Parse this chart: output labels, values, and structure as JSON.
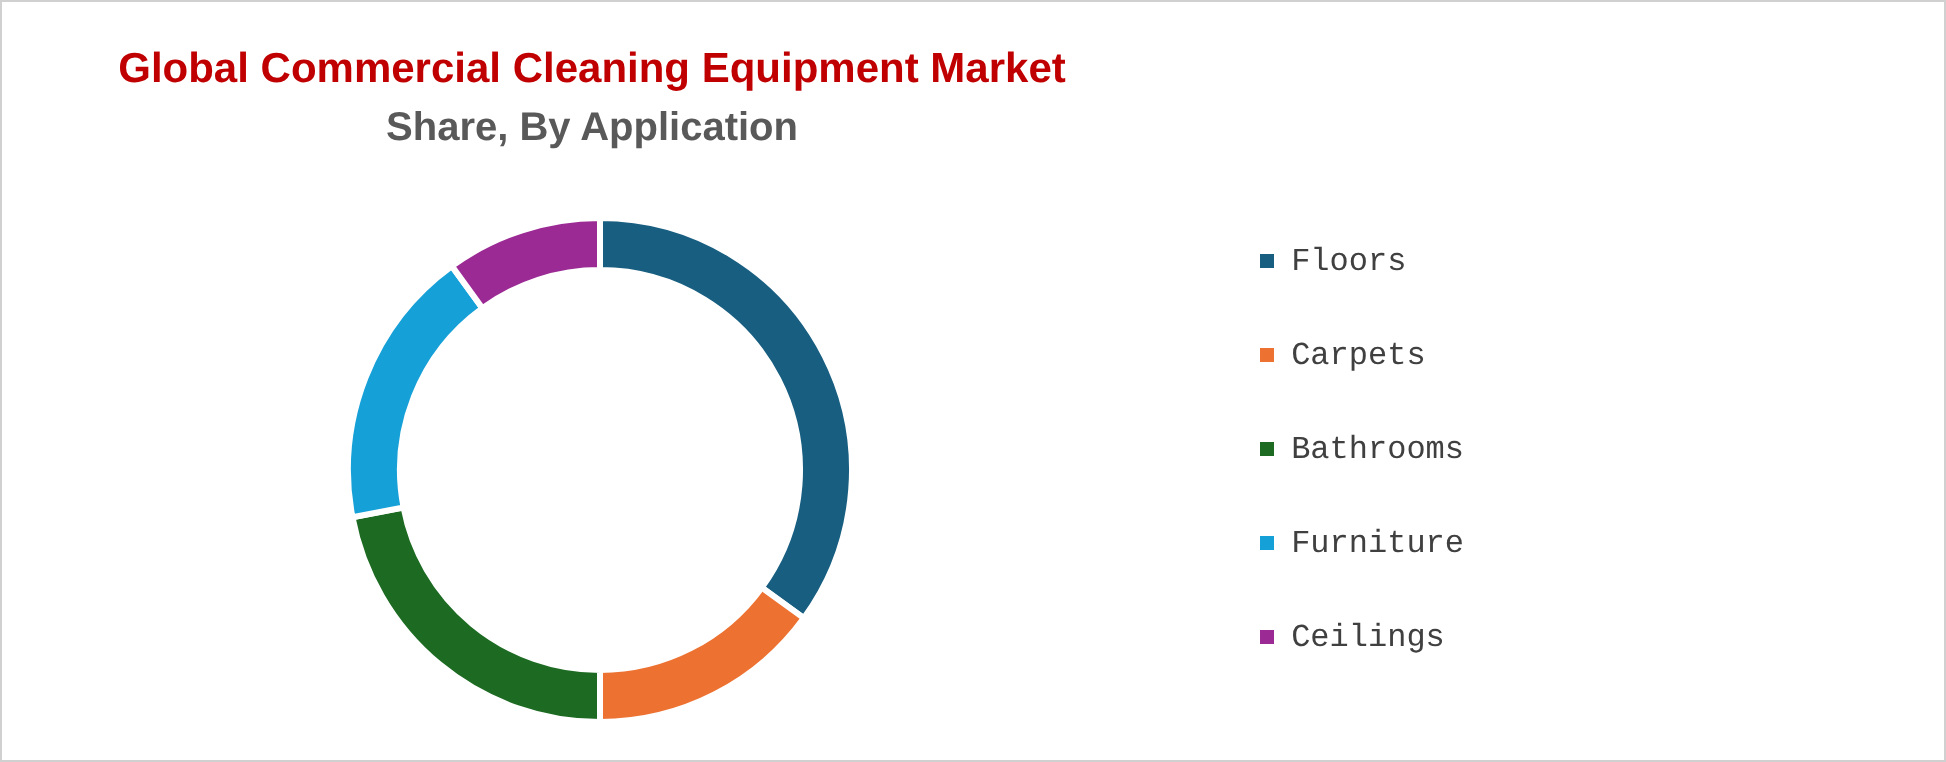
{
  "chart_data": {
    "type": "donut",
    "title": "Global Commercial Cleaning Equipment Market",
    "subtitle": "Share, By Application",
    "categories": [
      "Floors",
      "Carpets",
      "Bathrooms",
      "Furniture",
      "Ceilings"
    ],
    "values": [
      35,
      15,
      22,
      18,
      10
    ],
    "colors": [
      "#175e80",
      "#ed7130",
      "#1d6b23",
      "#16a0d8",
      "#9c2a95"
    ],
    "legend": "right"
  }
}
